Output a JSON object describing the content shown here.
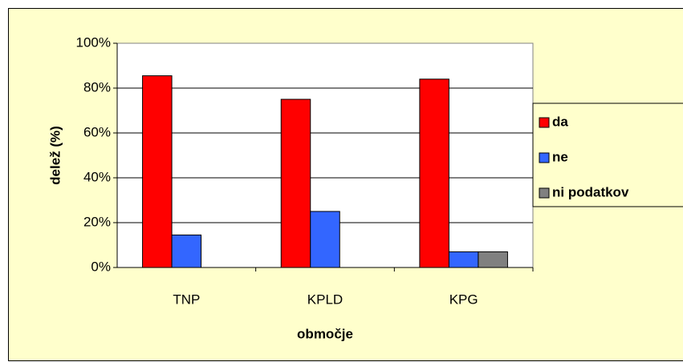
{
  "chart_data": {
    "type": "bar",
    "categories": [
      "TNP",
      "KPLD",
      "KPG"
    ],
    "series": [
      {
        "name": "da",
        "color": "#ff0000",
        "values": [
          85.5,
          75,
          84
        ]
      },
      {
        "name": "ne",
        "color": "#3366ff",
        "values": [
          14.5,
          25,
          7
        ]
      },
      {
        "name": "ni podatkov",
        "color": "#808080",
        "values": [
          0,
          0,
          7
        ]
      }
    ],
    "ylim": [
      0,
      100
    ],
    "yticks": [
      {
        "value": 0,
        "label": "0%"
      },
      {
        "value": 20,
        "label": "20%"
      },
      {
        "value": 40,
        "label": "40%"
      },
      {
        "value": 60,
        "label": "60%"
      },
      {
        "value": 80,
        "label": "80%"
      },
      {
        "value": 100,
        "label": "100%"
      }
    ],
    "grid": true,
    "y_label": "delež (%)",
    "x_label": "območje",
    "legend": "right"
  }
}
